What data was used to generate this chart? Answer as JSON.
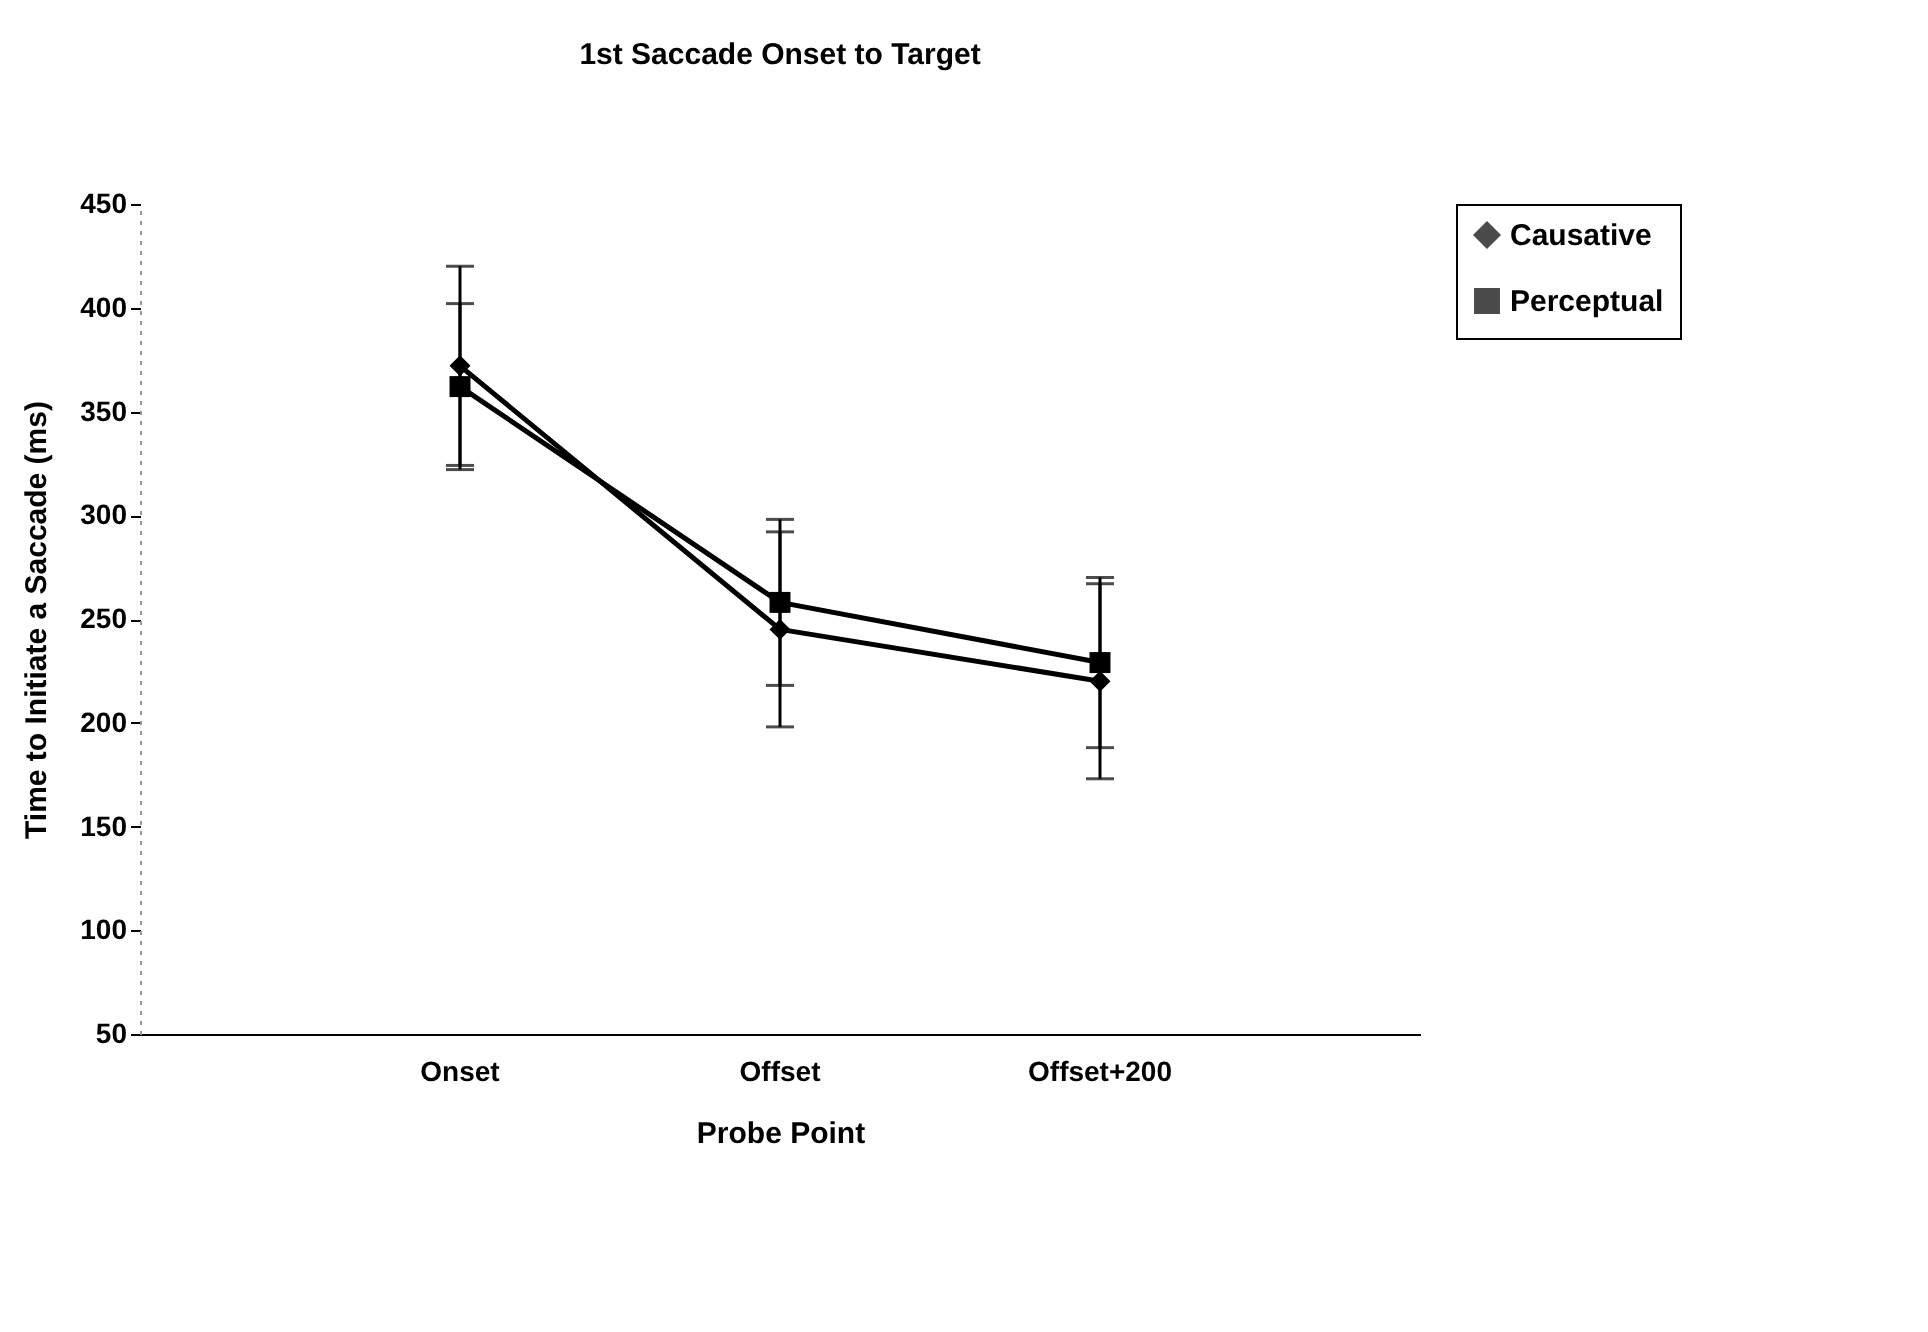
{
  "chart_data": {
    "type": "line",
    "title": "1st Saccade Onset to Target",
    "xlabel": "Probe Point",
    "ylabel": "Time to Initiate a Saccade (ms)",
    "categories": [
      "Onset",
      "Offset",
      "Offset+200"
    ],
    "series": [
      {
        "name": "Causative",
        "color": "#000000",
        "marker": "diamond",
        "values": [
          372,
          245,
          220
        ],
        "errors": [
          48,
          47,
          47
        ]
      },
      {
        "name": "Perceptual",
        "color": "#000000",
        "marker": "square",
        "values": [
          362,
          258,
          229
        ],
        "errors": [
          40,
          40,
          41
        ]
      }
    ],
    "ylim": [
      50,
      450
    ],
    "yticks": [
      50,
      100,
      150,
      200,
      250,
      300,
      350,
      400,
      450
    ],
    "grid": false,
    "legend": "right"
  }
}
